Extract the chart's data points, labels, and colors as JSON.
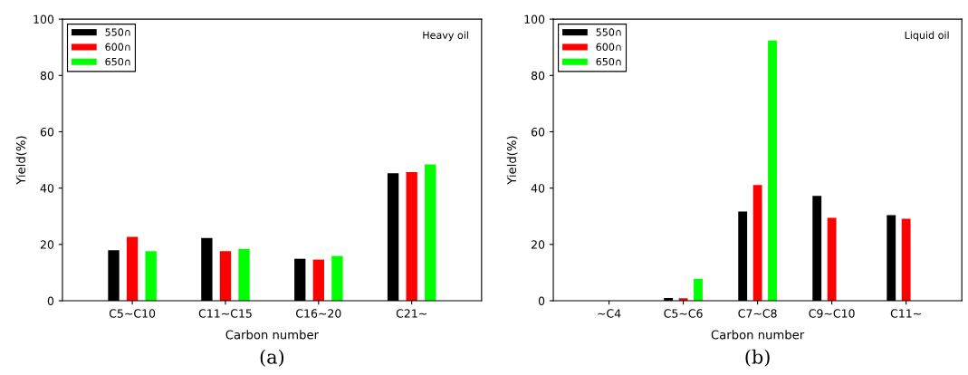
{
  "chart_data": [
    {
      "type": "bar",
      "categories": [
        "C5~C10",
        "C11~C15",
        "C16~20",
        "C21~"
      ],
      "xlabel": "Carbon number",
      "ylabel": "Yield(%)",
      "ylim": [
        0,
        100
      ],
      "yticks": [
        0,
        20,
        40,
        60,
        80,
        100
      ],
      "legend": "top left",
      "grid": false,
      "annotations": [
        "Heavy oil",
        "(a)"
      ],
      "series": [
        {
          "name": "550∩",
          "color": "#000000",
          "values": [
            17.9,
            22.3,
            14.9,
            45.3
          ]
        },
        {
          "name": "600∩",
          "color": "#ff0000",
          "values": [
            22.7,
            17.6,
            14.6,
            45.7
          ]
        },
        {
          "name": "650∩",
          "color": "#00ff00",
          "values": [
            17.6,
            18.4,
            15.9,
            48.4
          ]
        }
      ]
    },
    {
      "type": "bar",
      "categories": [
        "~C4",
        "C5~C6",
        "C7~C8",
        "C9~C10",
        "C11~"
      ],
      "xlabel": "Carbon number",
      "ylabel": "Yield(%)",
      "ylim": [
        0,
        100
      ],
      "yticks": [
        0,
        20,
        40,
        60,
        80,
        100
      ],
      "legend": "top left",
      "grid": false,
      "annotations": [
        "Liquid oil",
        "(b)"
      ],
      "series": [
        {
          "name": "550∩",
          "color": "#000000",
          "values": [
            0,
            1.0,
            31.7,
            37.2,
            30.4
          ]
        },
        {
          "name": "600∩",
          "color": "#ff0000",
          "values": [
            0,
            0.9,
            41.1,
            29.4,
            29.1
          ]
        },
        {
          "name": "650∩",
          "color": "#00ff00",
          "values": [
            0,
            7.8,
            92.4,
            0,
            0
          ]
        }
      ]
    }
  ]
}
